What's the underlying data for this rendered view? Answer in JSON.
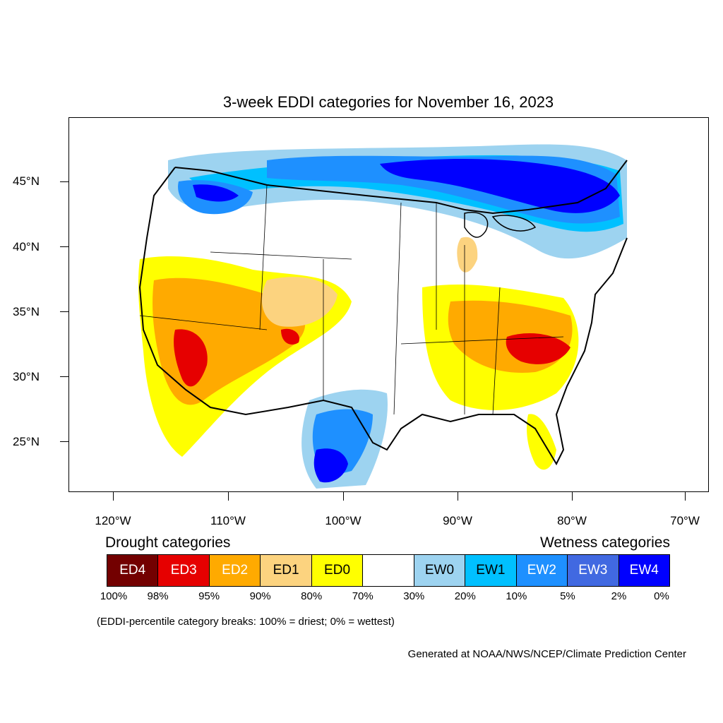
{
  "title": "3-week EDDI categories for November 16, 2023",
  "axes": {
    "lat_labels": [
      "45°N",
      "40°N",
      "35°N",
      "30°N",
      "25°N"
    ],
    "lon_labels": [
      "120°W",
      "110°W",
      "100°W",
      "90°W",
      "80°W",
      "70°W"
    ]
  },
  "legend": {
    "drought_heading": "Drought categories",
    "wetness_heading": "Wetness categories",
    "categories": [
      {
        "label": "ED4",
        "color": "#730000",
        "text_color": "#ffffff"
      },
      {
        "label": "ED3",
        "color": "#e60000",
        "text_color": "#ffffff"
      },
      {
        "label": "ED2",
        "color": "#ffaa00",
        "text_color": "#ffffff"
      },
      {
        "label": "ED1",
        "color": "#fcd37f",
        "text_color": "#000000"
      },
      {
        "label": "ED0",
        "color": "#ffff00",
        "text_color": "#000000"
      },
      {
        "label": "",
        "color": "#ffffff",
        "text_color": "#000000"
      },
      {
        "label": "EW0",
        "color": "#9dd3f0",
        "text_color": "#000000"
      },
      {
        "label": "EW1",
        "color": "#00c0ff",
        "text_color": "#000000"
      },
      {
        "label": "EW2",
        "color": "#1e90ff",
        "text_color": "#ffffff"
      },
      {
        "label": "EW3",
        "color": "#4169e1",
        "text_color": "#ffffff"
      },
      {
        "label": "EW4",
        "color": "#0000ff",
        "text_color": "#ffffff"
      }
    ],
    "percentiles": [
      "100%",
      "98%",
      "95%",
      "90%",
      "80%",
      "70%",
      "30%",
      "20%",
      "10%",
      "5%",
      "2%",
      "0%"
    ]
  },
  "note": "(EDDI-percentile category breaks: 100% = driest; 0% = wettest)",
  "credit": "Generated at NOAA/NWS/NCEP/Climate Prediction Center"
}
